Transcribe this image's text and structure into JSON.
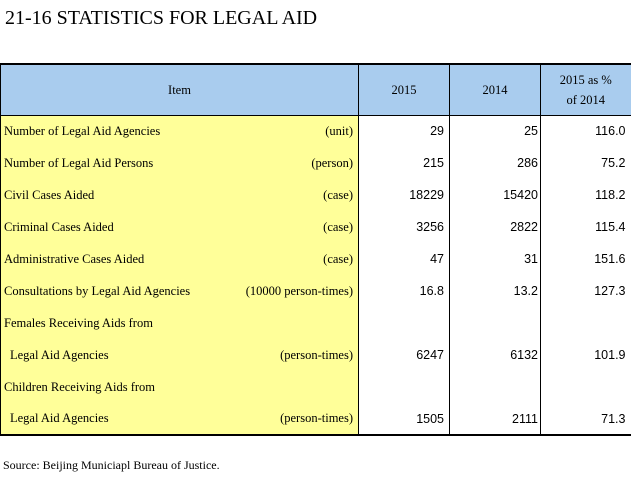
{
  "title": "21-16  STATISTICS FOR LEGAL AID",
  "headers": {
    "item": "Item",
    "y2015": "2015",
    "y2014": "2014",
    "pct_line1": "2015 as %",
    "pct_line2": "of 2014"
  },
  "rows": [
    {
      "label": "Number of Legal Aid Agencies",
      "unit": "(unit)",
      "v2015": "29",
      "v2014": "25",
      "pct": "116.0"
    },
    {
      "label": "Number of Legal Aid Persons",
      "unit": "(person)",
      "v2015": "215",
      "v2014": "286",
      "pct": "75.2"
    },
    {
      "label": "Civil Cases Aided",
      "unit": "(case)",
      "v2015": "18229",
      "v2014": "15420",
      "pct": "118.2"
    },
    {
      "label": "Criminal Cases Aided",
      "unit": "(case)",
      "v2015": "3256",
      "v2014": "2822",
      "pct": "115.4"
    },
    {
      "label": "Administrative Cases Aided",
      "unit": "(case)",
      "v2015": "47",
      "v2014": "31",
      "pct": "151.6"
    },
    {
      "label": "Consultations by Legal Aid Agencies",
      "unit": "(10000 person-times)",
      "v2015": "16.8",
      "v2014": "13.2",
      "pct": "127.3"
    },
    {
      "label": "Females Receiving Aids from",
      "unit": "",
      "v2015": "",
      "v2014": "",
      "pct": ""
    },
    {
      "label": "Legal Aid Agencies",
      "unit": "(person-times)",
      "v2015": "6247",
      "v2014": "6132",
      "pct": "101.9"
    },
    {
      "label": "Children Receiving Aids from",
      "unit": "",
      "v2015": "",
      "v2014": "",
      "pct": ""
    },
    {
      "label": "Legal Aid Agencies",
      "unit": "(person-times)",
      "v2015": "1505",
      "v2014": "2111",
      "pct": "71.3"
    }
  ],
  "source": "Source: Beijing Municiapl Bureau of Justice."
}
